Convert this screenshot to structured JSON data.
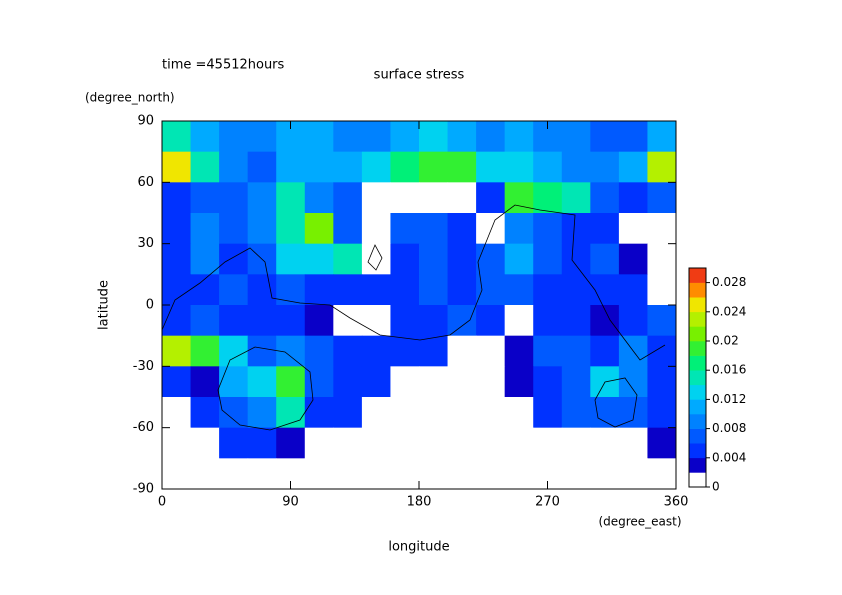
{
  "chart_data": {
    "type": "contour",
    "title": "surface stress",
    "subtitle": "time =45512hours",
    "xlabel": "longitude",
    "ylabel": "latitude",
    "x_units": "(degree_east)",
    "y_units": "(degree_north)",
    "xlim": [
      0,
      360
    ],
    "ylim": [
      -90,
      90
    ],
    "xticks": [
      0,
      90,
      180,
      270,
      360
    ],
    "yticks": [
      -90,
      -60,
      -30,
      0,
      30,
      60,
      90
    ],
    "x": [
      10,
      30,
      50,
      70,
      90,
      110,
      130,
      150,
      170,
      190,
      210,
      230,
      250,
      270,
      290,
      310,
      330,
      350
    ],
    "y": [
      82.5,
      67.5,
      52.5,
      37.5,
      22.5,
      7.5,
      -7.5,
      -22.5,
      -37.5,
      -52.5,
      -67.5,
      -82.5
    ],
    "z": [
      [
        0.014,
        0.01,
        0.008,
        0.008,
        0.01,
        0.01,
        0.008,
        0.008,
        0.01,
        0.012,
        0.01,
        0.008,
        0.01,
        0.008,
        0.008,
        0.006,
        0.006,
        0.01
      ],
      [
        0.024,
        0.014,
        0.008,
        0.006,
        0.01,
        0.01,
        0.01,
        0.012,
        0.016,
        0.018,
        0.018,
        0.012,
        0.012,
        0.01,
        0.008,
        0.008,
        0.01,
        0.022
      ],
      [
        0.004,
        0.006,
        0.006,
        0.008,
        0.014,
        0.008,
        0.006,
        0,
        0,
        0,
        0,
        0.004,
        0.018,
        0.016,
        0.014,
        0.006,
        0.004,
        0.006
      ],
      [
        0.004,
        0.008,
        0.006,
        0.008,
        0.014,
        0.02,
        0.006,
        0,
        0.006,
        0.006,
        0.004,
        0,
        0.008,
        0.006,
        0.004,
        0.004,
        0,
        0
      ],
      [
        0.004,
        0.008,
        0.004,
        0.006,
        0.012,
        0.012,
        0.014,
        0,
        0.004,
        0.006,
        0.004,
        0.006,
        0.01,
        0.006,
        0.004,
        0.006,
        0.002,
        0
      ],
      [
        0.004,
        0.004,
        0.006,
        0.004,
        0.006,
        0.004,
        0.004,
        0.004,
        0.004,
        0.006,
        0.004,
        0.006,
        0.006,
        0.004,
        0.004,
        0.004,
        0.004,
        0
      ],
      [
        0.004,
        0.006,
        0.004,
        0.004,
        0.004,
        0.002,
        0,
        0,
        0.004,
        0.004,
        0.006,
        0.004,
        0,
        0.004,
        0.004,
        0.002,
        0.004,
        0.006
      ],
      [
        0.022,
        0.018,
        0.012,
        0.006,
        0.008,
        0.006,
        0.004,
        0.004,
        0.004,
        0.004,
        0,
        0,
        0.002,
        0.006,
        0.006,
        0.004,
        0.008,
        0.004
      ],
      [
        0.004,
        0.002,
        0.01,
        0.012,
        0.018,
        0.006,
        0.004,
        0.004,
        0,
        0,
        0,
        0,
        0.002,
        0.004,
        0.006,
        0.012,
        0.008,
        0.004
      ],
      [
        0,
        0.004,
        0.006,
        0.008,
        0.014,
        0.004,
        0.004,
        0,
        0,
        0,
        0,
        0,
        0,
        0.004,
        0.006,
        0.006,
        0.006,
        0.004
      ],
      [
        0,
        0,
        0.004,
        0.004,
        0.002,
        0,
        0,
        0,
        0,
        0,
        0,
        0,
        0,
        0,
        0,
        0,
        0,
        0.002
      ],
      [
        0,
        0,
        0,
        0,
        0,
        0,
        0,
        0,
        0,
        0,
        0,
        0,
        0,
        0,
        0,
        0,
        0,
        0
      ]
    ],
    "levels": [
      0,
      0.002,
      0.004,
      0.006,
      0.008,
      0.01,
      0.012,
      0.014,
      0.016,
      0.018,
      0.02,
      0.022,
      0.024,
      0.026,
      0.028,
      0.03
    ],
    "colors": [
      "#ffffff",
      "#0a00c8",
      "#0032ff",
      "#005aff",
      "#0082ff",
      "#00aaff",
      "#00d2f0",
      "#00e6b4",
      "#00f078",
      "#32f032",
      "#78f000",
      "#b4f000",
      "#f0e600",
      "#ff8c00",
      "#f03c14"
    ],
    "colorbar_ticks": [
      0,
      0.004,
      0.008,
      0.012,
      0.016,
      0.02,
      0.024,
      0.028
    ]
  }
}
